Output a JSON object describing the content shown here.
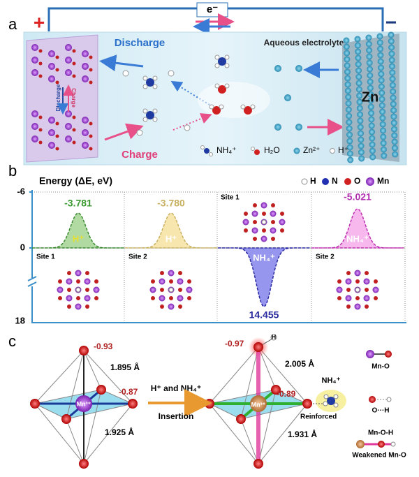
{
  "panel_a": {
    "label": "a",
    "plus": "+",
    "minus": "−",
    "electron": "e⁻",
    "discharge": "Discharge",
    "charge": "Charge",
    "electrolyte": "Aqueous electrolyte",
    "electrode_discharge": "Discharge",
    "electrode_charge": "Charge",
    "zn": "Zn",
    "legend": [
      "NH₄⁺",
      "H₂O",
      "Zn²⁺",
      "H⁺"
    ]
  },
  "panel_b": {
    "label": "b",
    "axis_title": "Energy (ΔE, eV)",
    "axis_ticks": [
      "-6",
      "0",
      "18"
    ],
    "legend": [
      "H",
      "N",
      "O",
      "Mn"
    ],
    "columns": [
      {
        "site": "Site 1",
        "ion": "H⁺",
        "energy": "-3.781"
      },
      {
        "site": "Site 2",
        "ion": "H⁺",
        "energy": "-3.780"
      },
      {
        "site": "Site 1",
        "ion": "NH₄⁺",
        "energy": "14.455"
      },
      {
        "site": "Site 2",
        "ion": "NH₄⁺",
        "energy": "-5.021"
      }
    ]
  },
  "panel_c": {
    "label": "c",
    "left": {
      "top_charge": "-0.93",
      "bond_top": "1.895 Å",
      "right_charge": "-0.87",
      "bond_bottom": "1.925 Å",
      "center": "Mn³⁺"
    },
    "arrow_top": "H⁺ and NH₄⁺",
    "arrow_bottom": "Insertion",
    "right": {
      "top_charge": "-0.97",
      "hydrogen": "H",
      "bond_top": "2.005 Å",
      "right_charge": "-0.89",
      "ion": "NH₄⁺",
      "center": "Mn³⁺",
      "reinforced": "Reinforced",
      "bond_bottom": "1.931 Å"
    },
    "legend": [
      "Mn-O",
      "O···H",
      "Mn-O-H",
      "Weakened Mn-O"
    ]
  }
}
